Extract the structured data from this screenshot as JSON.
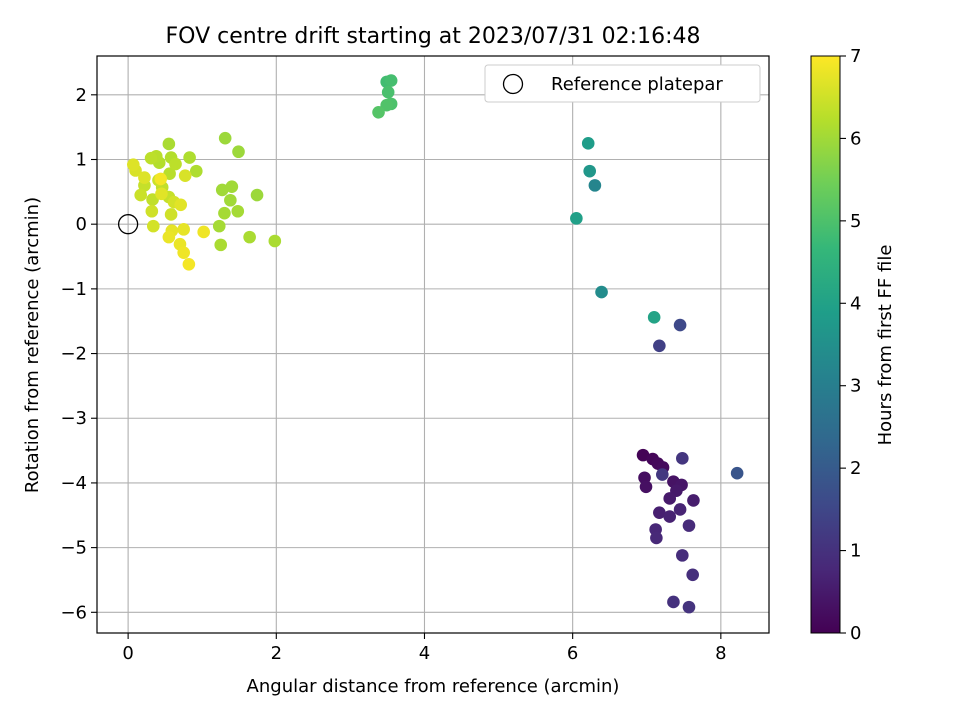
{
  "chart_data": {
    "type": "scatter",
    "title": "FOV centre drift starting at 2023/07/31 02:16:48",
    "xlabel": "Angular distance from reference (arcmin)",
    "ylabel": "Rotation from reference (arcmin)",
    "xlim": [
      -0.42,
      8.65
    ],
    "ylim": [
      -6.32,
      2.6
    ],
    "xticks": [
      0,
      2,
      4,
      6,
      8
    ],
    "yticks": [
      2,
      1,
      0,
      -1,
      -2,
      -3,
      -4,
      -5,
      -6
    ],
    "xtick_labels": [
      "0",
      "2",
      "4",
      "6",
      "8"
    ],
    "ytick_labels": [
      "2",
      "1",
      "0",
      "−1",
      "−2",
      "−3",
      "−4",
      "−5",
      "−6"
    ],
    "grid": true,
    "legend": {
      "position": "top-right",
      "label": "Reference platepar"
    },
    "reference_point": {
      "x": 0,
      "y": 0
    },
    "colorbar": {
      "label": "Hours from first FF file",
      "min": 0,
      "max": 7,
      "ticks": [
        0,
        1,
        2,
        3,
        4,
        5,
        6,
        7
      ],
      "tick_labels": [
        "0",
        "1",
        "2",
        "3",
        "4",
        "5",
        "6",
        "7"
      ],
      "colormap": [
        "#440154",
        "#482878",
        "#3e4989",
        "#31688e",
        "#26828e",
        "#1f9e89",
        "#35b779",
        "#6ece58",
        "#b5de2b",
        "#fde725"
      ]
    },
    "points": [
      {
        "x": 6.95,
        "y": -3.57,
        "c": 0.05
      },
      {
        "x": 7.08,
        "y": -3.63,
        "c": 0.1
      },
      {
        "x": 7.15,
        "y": -3.7,
        "c": 0.15
      },
      {
        "x": 7.22,
        "y": -3.76,
        "c": 0.2
      },
      {
        "x": 6.97,
        "y": -3.92,
        "c": 0.25
      },
      {
        "x": 6.99,
        "y": -4.06,
        "c": 0.3
      },
      {
        "x": 7.36,
        "y": -3.98,
        "c": 0.35
      },
      {
        "x": 7.47,
        "y": -4.03,
        "c": 0.4
      },
      {
        "x": 7.4,
        "y": -4.12,
        "c": 0.45
      },
      {
        "x": 7.31,
        "y": -4.24,
        "c": 0.5
      },
      {
        "x": 7.63,
        "y": -4.27,
        "c": 0.55
      },
      {
        "x": 7.17,
        "y": -4.46,
        "c": 0.6
      },
      {
        "x": 7.31,
        "y": -4.52,
        "c": 0.65
      },
      {
        "x": 7.45,
        "y": -4.41,
        "c": 0.7
      },
      {
        "x": 7.12,
        "y": -4.72,
        "c": 0.75
      },
      {
        "x": 7.13,
        "y": -4.85,
        "c": 0.8
      },
      {
        "x": 7.57,
        "y": -4.66,
        "c": 0.85
      },
      {
        "x": 7.48,
        "y": -5.12,
        "c": 0.9
      },
      {
        "x": 7.62,
        "y": -5.42,
        "c": 0.95
      },
      {
        "x": 7.36,
        "y": -5.84,
        "c": 1.0
      },
      {
        "x": 7.57,
        "y": -5.92,
        "c": 1.05
      },
      {
        "x": 7.48,
        "y": -3.62,
        "c": 1.1
      },
      {
        "x": 7.21,
        "y": -3.87,
        "c": 1.15
      },
      {
        "x": 7.17,
        "y": -1.88,
        "c": 1.35
      },
      {
        "x": 7.45,
        "y": -1.56,
        "c": 1.55
      },
      {
        "x": 8.22,
        "y": -3.85,
        "c": 1.85
      },
      {
        "x": 6.3,
        "y": 0.6,
        "c": 3.2
      },
      {
        "x": 6.39,
        "y": -1.05,
        "c": 3.4
      },
      {
        "x": 6.23,
        "y": 0.82,
        "c": 3.7
      },
      {
        "x": 6.21,
        "y": 1.25,
        "c": 3.85
      },
      {
        "x": 6.05,
        "y": 0.09,
        "c": 3.95
      },
      {
        "x": 7.1,
        "y": -1.44,
        "c": 4.05
      },
      {
        "x": 3.49,
        "y": 2.2,
        "c": 4.85
      },
      {
        "x": 3.55,
        "y": 2.22,
        "c": 4.9
      },
      {
        "x": 3.51,
        "y": 2.04,
        "c": 4.95
      },
      {
        "x": 3.55,
        "y": 1.86,
        "c": 5.0
      },
      {
        "x": 3.49,
        "y": 1.84,
        "c": 5.05
      },
      {
        "x": 3.38,
        "y": 1.73,
        "c": 5.1
      },
      {
        "x": 1.31,
        "y": 1.33,
        "c": 5.95
      },
      {
        "x": 1.49,
        "y": 1.12,
        "c": 5.95
      },
      {
        "x": 1.74,
        "y": 0.45,
        "c": 5.95
      },
      {
        "x": 1.4,
        "y": 0.58,
        "c": 6.0
      },
      {
        "x": 1.27,
        "y": 0.53,
        "c": 6.0
      },
      {
        "x": 1.38,
        "y": 0.37,
        "c": 6.0
      },
      {
        "x": 1.3,
        "y": 0.17,
        "c": 6.05
      },
      {
        "x": 1.48,
        "y": 0.2,
        "c": 6.05
      },
      {
        "x": 1.23,
        "y": -0.03,
        "c": 6.05
      },
      {
        "x": 1.98,
        "y": -0.26,
        "c": 6.1
      },
      {
        "x": 1.64,
        "y": -0.2,
        "c": 6.1
      },
      {
        "x": 1.25,
        "y": -0.32,
        "c": 6.1
      },
      {
        "x": 0.55,
        "y": 1.24,
        "c": 6.1
      },
      {
        "x": 0.83,
        "y": 1.03,
        "c": 6.15
      },
      {
        "x": 0.92,
        "y": 0.82,
        "c": 6.15
      },
      {
        "x": 0.58,
        "y": 1.03,
        "c": 6.2
      },
      {
        "x": 0.42,
        "y": 0.95,
        "c": 6.2
      },
      {
        "x": 0.56,
        "y": 0.78,
        "c": 6.25
      },
      {
        "x": 0.38,
        "y": 1.05,
        "c": 6.25
      },
      {
        "x": 0.64,
        "y": 0.93,
        "c": 6.3
      },
      {
        "x": 0.31,
        "y": 1.02,
        "c": 6.3
      },
      {
        "x": 0.46,
        "y": 0.57,
        "c": 6.35
      },
      {
        "x": 0.33,
        "y": 0.38,
        "c": 6.35
      },
      {
        "x": 0.55,
        "y": 0.42,
        "c": 6.4
      },
      {
        "x": 0.22,
        "y": 0.6,
        "c": 6.4
      },
      {
        "x": 0.17,
        "y": 0.45,
        "c": 6.45
      },
      {
        "x": 0.41,
        "y": 0.68,
        "c": 6.45
      },
      {
        "x": 0.32,
        "y": 0.2,
        "c": 6.5
      },
      {
        "x": 0.58,
        "y": 0.15,
        "c": 6.5
      },
      {
        "x": 0.34,
        "y": -0.03,
        "c": 6.55
      },
      {
        "x": 0.62,
        "y": 0.34,
        "c": 6.55
      },
      {
        "x": 0.77,
        "y": 0.75,
        "c": 6.6
      },
      {
        "x": 0.1,
        "y": 0.83,
        "c": 6.6
      },
      {
        "x": 0.07,
        "y": 0.92,
        "c": 6.65
      },
      {
        "x": 0.22,
        "y": 0.72,
        "c": 6.65
      },
      {
        "x": 0.45,
        "y": 0.47,
        "c": 6.7
      },
      {
        "x": 0.71,
        "y": 0.3,
        "c": 6.7
      },
      {
        "x": 0.59,
        "y": -0.1,
        "c": 6.75
      },
      {
        "x": 0.75,
        "y": -0.08,
        "c": 6.75
      },
      {
        "x": 0.55,
        "y": -0.2,
        "c": 6.8
      },
      {
        "x": 0.7,
        "y": -0.31,
        "c": 6.8
      },
      {
        "x": 1.02,
        "y": -0.12,
        "c": 6.85
      },
      {
        "x": 0.75,
        "y": -0.44,
        "c": 6.85
      },
      {
        "x": 0.82,
        "y": -0.62,
        "c": 6.9
      },
      {
        "x": 0.44,
        "y": 0.7,
        "c": 6.9
      }
    ]
  }
}
